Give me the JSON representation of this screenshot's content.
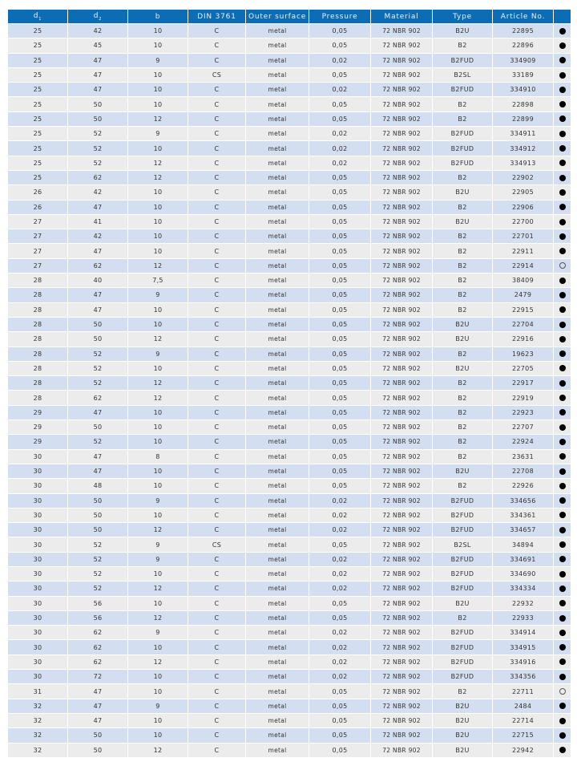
{
  "table": {
    "headers": [
      {
        "label": "d",
        "sub": "1"
      },
      {
        "label": "d",
        "sub": "2"
      },
      {
        "label": "b"
      },
      {
        "label": "DIN 3761"
      },
      {
        "label": "Outer surface"
      },
      {
        "label": "Pressure"
      },
      {
        "label": "Material"
      },
      {
        "label": "Type"
      },
      {
        "label": "Article No."
      },
      {
        "label": ""
      }
    ],
    "icons": {
      "filled": "filled-circle-icon",
      "open": "open-circle-icon"
    },
    "rows": [
      [
        "25",
        "42",
        "10",
        "C",
        "metal",
        "0,05",
        "72 NBR 902",
        "B2U",
        "22895",
        "filled"
      ],
      [
        "25",
        "45",
        "10",
        "C",
        "metal",
        "0,05",
        "72 NBR 902",
        "B2",
        "22896",
        "filled"
      ],
      [
        "25",
        "47",
        "9",
        "C",
        "metal",
        "0,02",
        "72 NBR 902",
        "B2FUD",
        "334909",
        "filled"
      ],
      [
        "25",
        "47",
        "10",
        "CS",
        "metal",
        "0,05",
        "72 NBR 902",
        "B2SL",
        "33189",
        "filled"
      ],
      [
        "25",
        "47",
        "10",
        "C",
        "metal",
        "0,02",
        "72 NBR 902",
        "B2FUD",
        "334910",
        "filled"
      ],
      [
        "25",
        "50",
        "10",
        "C",
        "metal",
        "0,05",
        "72 NBR 902",
        "B2",
        "22898",
        "filled"
      ],
      [
        "25",
        "50",
        "12",
        "C",
        "metal",
        "0,05",
        "72 NBR 902",
        "B2",
        "22899",
        "filled"
      ],
      [
        "25",
        "52",
        "9",
        "C",
        "metal",
        "0,02",
        "72 NBR 902",
        "B2FUD",
        "334911",
        "filled"
      ],
      [
        "25",
        "52",
        "10",
        "C",
        "metal",
        "0,02",
        "72 NBR 902",
        "B2FUD",
        "334912",
        "filled"
      ],
      [
        "25",
        "52",
        "12",
        "C",
        "metal",
        "0,02",
        "72 NBR 902",
        "B2FUD",
        "334913",
        "filled"
      ],
      [
        "25",
        "62",
        "12",
        "C",
        "metal",
        "0,05",
        "72 NBR 902",
        "B2",
        "22902",
        "filled"
      ],
      [
        "26",
        "42",
        "10",
        "C",
        "metal",
        "0,05",
        "72 NBR 902",
        "B2U",
        "22905",
        "filled"
      ],
      [
        "26",
        "47",
        "10",
        "C",
        "metal",
        "0,05",
        "72 NBR 902",
        "B2",
        "22906",
        "filled"
      ],
      [
        "27",
        "41",
        "10",
        "C",
        "metal",
        "0,05",
        "72 NBR 902",
        "B2U",
        "22700",
        "filled"
      ],
      [
        "27",
        "42",
        "10",
        "C",
        "metal",
        "0,05",
        "72 NBR 902",
        "B2",
        "22701",
        "filled"
      ],
      [
        "27",
        "47",
        "10",
        "C",
        "metal",
        "0,05",
        "72 NBR 902",
        "B2",
        "22911",
        "filled"
      ],
      [
        "27",
        "62",
        "12",
        "C",
        "metal",
        "0,05",
        "72 NBR 902",
        "B2",
        "22914",
        "open"
      ],
      [
        "28",
        "40",
        "7,5",
        "C",
        "metal",
        "0,05",
        "72 NBR 902",
        "B2",
        "38409",
        "filled"
      ],
      [
        "28",
        "47",
        "9",
        "C",
        "metal",
        "0,05",
        "72 NBR 902",
        "B2",
        "2479",
        "filled"
      ],
      [
        "28",
        "47",
        "10",
        "C",
        "metal",
        "0,05",
        "72 NBR 902",
        "B2",
        "22915",
        "filled"
      ],
      [
        "28",
        "50",
        "10",
        "C",
        "metal",
        "0,05",
        "72 NBR 902",
        "B2U",
        "22704",
        "filled"
      ],
      [
        "28",
        "50",
        "12",
        "C",
        "metal",
        "0,05",
        "72 NBR 902",
        "B2U",
        "22916",
        "filled"
      ],
      [
        "28",
        "52",
        "9",
        "C",
        "metal",
        "0,05",
        "72 NBR 902",
        "B2",
        "19623",
        "filled"
      ],
      [
        "28",
        "52",
        "10",
        "C",
        "metal",
        "0,05",
        "72 NBR 902",
        "B2U",
        "22705",
        "filled"
      ],
      [
        "28",
        "52",
        "12",
        "C",
        "metal",
        "0,05",
        "72 NBR 902",
        "B2",
        "22917",
        "filled"
      ],
      [
        "28",
        "62",
        "12",
        "C",
        "metal",
        "0,05",
        "72 NBR 902",
        "B2",
        "22919",
        "filled"
      ],
      [
        "29",
        "47",
        "10",
        "C",
        "metal",
        "0,05",
        "72 NBR 902",
        "B2",
        "22923",
        "filled"
      ],
      [
        "29",
        "50",
        "10",
        "C",
        "metal",
        "0,05",
        "72 NBR 902",
        "B2",
        "22707",
        "filled"
      ],
      [
        "29",
        "52",
        "10",
        "C",
        "metal",
        "0,05",
        "72 NBR 902",
        "B2",
        "22924",
        "filled"
      ],
      [
        "30",
        "47",
        "8",
        "C",
        "metal",
        "0,05",
        "72 NBR 902",
        "B2",
        "23631",
        "filled"
      ],
      [
        "30",
        "47",
        "10",
        "C",
        "metal",
        "0,05",
        "72 NBR 902",
        "B2U",
        "22708",
        "filled"
      ],
      [
        "30",
        "48",
        "10",
        "C",
        "metal",
        "0,05",
        "72 NBR 902",
        "B2",
        "22926",
        "filled"
      ],
      [
        "30",
        "50",
        "9",
        "C",
        "metal",
        "0,02",
        "72 NBR 902",
        "B2FUD",
        "334656",
        "filled"
      ],
      [
        "30",
        "50",
        "10",
        "C",
        "metal",
        "0,02",
        "72 NBR 902",
        "B2FUD",
        "334361",
        "filled"
      ],
      [
        "30",
        "50",
        "12",
        "C",
        "metal",
        "0,02",
        "72 NBR 902",
        "B2FUD",
        "334657",
        "filled"
      ],
      [
        "30",
        "52",
        "9",
        "CS",
        "metal",
        "0,05",
        "72 NBR 902",
        "B2SL",
        "34894",
        "filled"
      ],
      [
        "30",
        "52",
        "9",
        "C",
        "metal",
        "0,02",
        "72 NBR 902",
        "B2FUD",
        "334691",
        "filled"
      ],
      [
        "30",
        "52",
        "10",
        "C",
        "metal",
        "0,02",
        "72 NBR 902",
        "B2FUD",
        "334690",
        "filled"
      ],
      [
        "30",
        "52",
        "12",
        "C",
        "metal",
        "0,02",
        "72 NBR 902",
        "B2FUD",
        "334334",
        "filled"
      ],
      [
        "30",
        "56",
        "10",
        "C",
        "metal",
        "0,05",
        "72 NBR 902",
        "B2U",
        "22932",
        "filled"
      ],
      [
        "30",
        "56",
        "12",
        "C",
        "metal",
        "0,05",
        "72 NBR 902",
        "B2",
        "22933",
        "filled"
      ],
      [
        "30",
        "62",
        "9",
        "C",
        "metal",
        "0,02",
        "72 NBR 902",
        "B2FUD",
        "334914",
        "filled"
      ],
      [
        "30",
        "62",
        "10",
        "C",
        "metal",
        "0,02",
        "72 NBR 902",
        "B2FUD",
        "334915",
        "filled"
      ],
      [
        "30",
        "62",
        "12",
        "C",
        "metal",
        "0,02",
        "72 NBR 902",
        "B2FUD",
        "334916",
        "filled"
      ],
      [
        "30",
        "72",
        "10",
        "C",
        "metal",
        "0,02",
        "72 NBR 902",
        "B2FUD",
        "334356",
        "filled"
      ],
      [
        "31",
        "47",
        "10",
        "C",
        "metal",
        "0,05",
        "72 NBR 902",
        "B2",
        "22711",
        "open"
      ],
      [
        "32",
        "47",
        "9",
        "C",
        "metal",
        "0,05",
        "72 NBR 902",
        "B2U",
        "2484",
        "filled"
      ],
      [
        "32",
        "47",
        "10",
        "C",
        "metal",
        "0,05",
        "72 NBR 902",
        "B2U",
        "22714",
        "filled"
      ],
      [
        "32",
        "50",
        "10",
        "C",
        "metal",
        "0,05",
        "72 NBR 902",
        "B2U",
        "22715",
        "filled"
      ],
      [
        "32",
        "50",
        "12",
        "C",
        "metal",
        "0,05",
        "72 NBR 902",
        "B2U",
        "22942",
        "filled"
      ]
    ]
  },
  "colors": {
    "header": "#0b6db5",
    "row_odd": "#d3dff0",
    "row_even": "#ececec"
  }
}
